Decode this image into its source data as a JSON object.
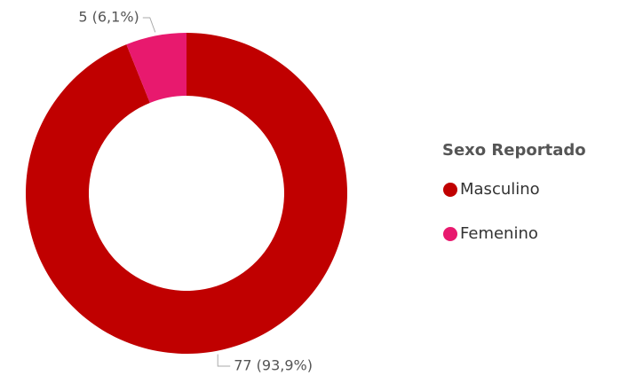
{
  "chart_data": {
    "type": "donut",
    "categories": [
      "Masculino",
      "Femenino"
    ],
    "values": [
      77,
      5
    ],
    "value_labels": [
      "77 (93,9%)",
      "5 (6,1%)"
    ],
    "colors": [
      "#c00000",
      "#e8196e"
    ],
    "legend_title": "Sexo Reportado",
    "legend_position": "right"
  }
}
